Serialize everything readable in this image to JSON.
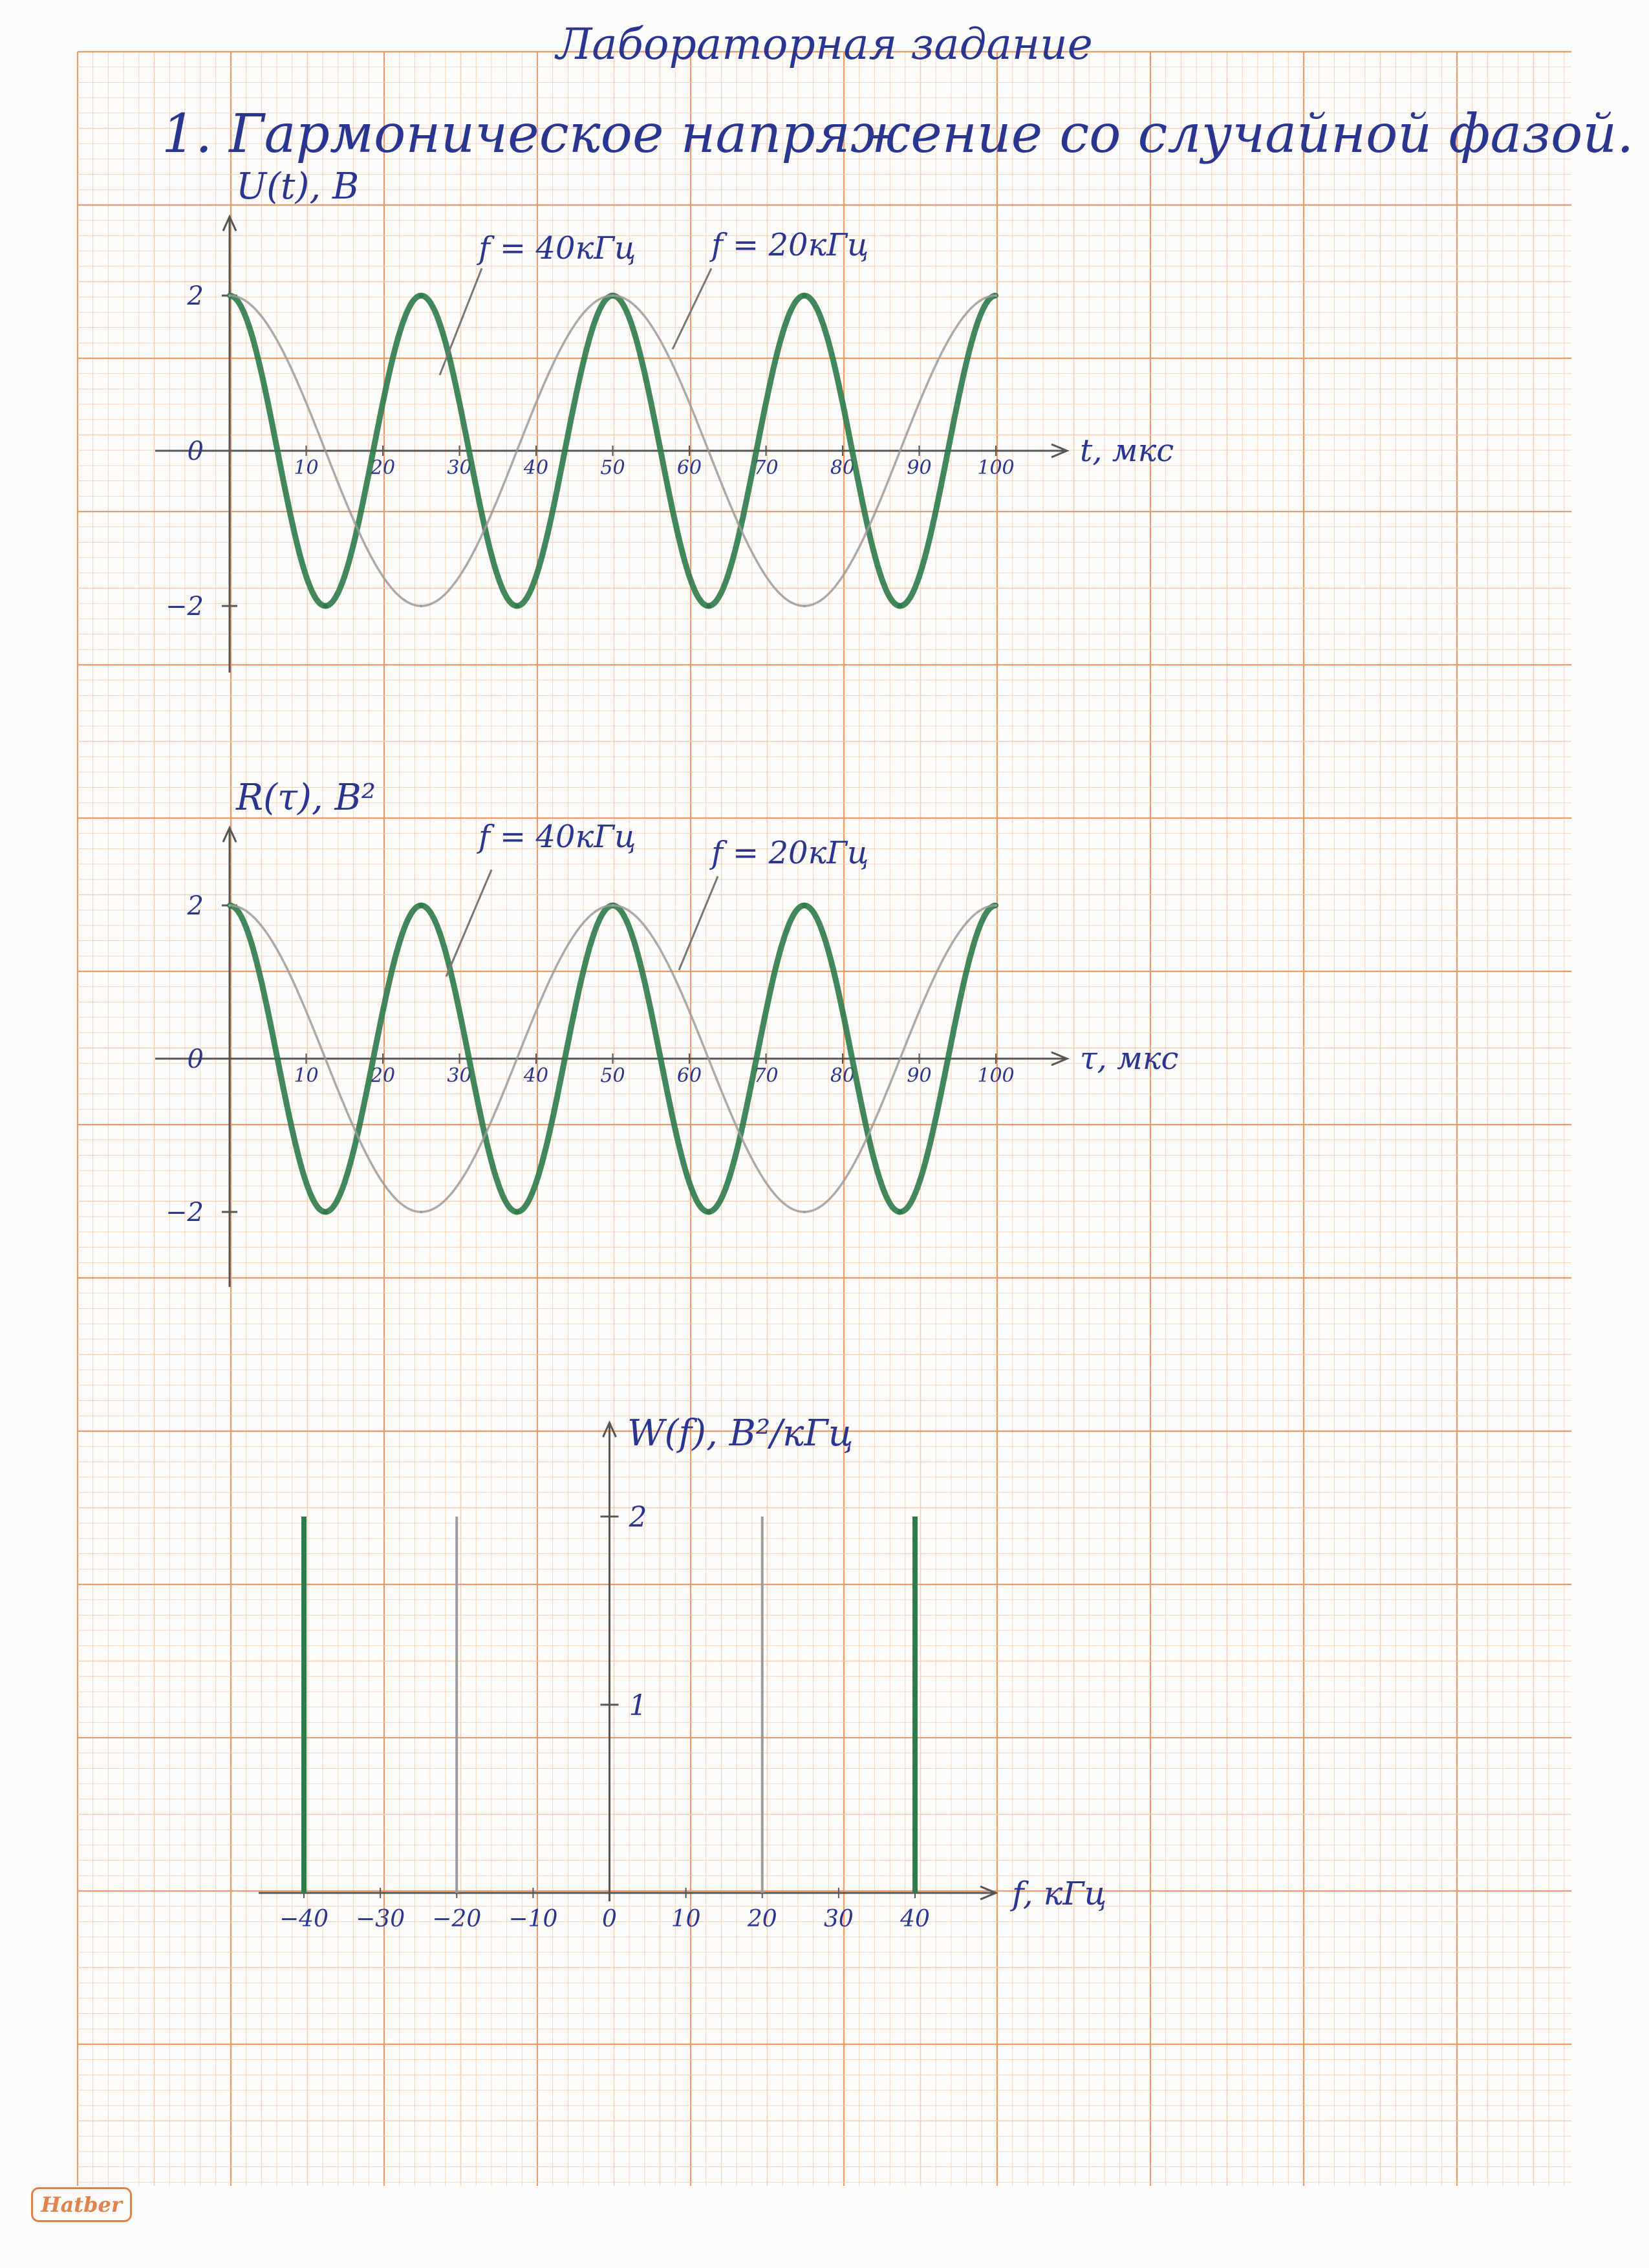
{
  "page": {
    "title": "Лабораторная задание",
    "section": "1. Гармоническое напряжение со случайной фазой.",
    "logo_text": "Hatber"
  },
  "colors": {
    "grid_minor": "#f6cdb2",
    "grid_major": "#ec9a68",
    "ink": "#2a3590",
    "green": "#2d7a4a",
    "pencil": "#9a9a9a"
  },
  "chart_data": [
    {
      "type": "line",
      "name": "u-of-t",
      "ylabel": "U(t), B",
      "xlabel": "t, мкс",
      "xlim": [
        0,
        100
      ],
      "ylim": [
        -2,
        2
      ],
      "x_ticks": [
        "10",
        "20",
        "30",
        "40",
        "50",
        "60",
        "70",
        "80",
        "90",
        "100"
      ],
      "y_ticks": [
        "2",
        "0",
        "-2"
      ],
      "annotations": [
        "f = 40кГц",
        "f = 20кГц"
      ],
      "series": [
        {
          "name": "f = 40кГц",
          "color": "#2d7a4a",
          "formula": "2cos(2π·0.04·t)",
          "x": [
            0,
            12.5,
            25,
            37.5,
            50,
            62.5,
            75,
            87.5,
            100
          ],
          "y": [
            2,
            -2,
            2,
            -2,
            2,
            -2,
            2,
            -2,
            2
          ]
        },
        {
          "name": "f = 20кГц",
          "color": "#9a9a9a",
          "formula": "2cos(2π·0.02·t)",
          "x": [
            0,
            25,
            50,
            75,
            100
          ],
          "y": [
            2,
            -2,
            2,
            -2,
            2
          ]
        }
      ]
    },
    {
      "type": "line",
      "name": "r-of-tau",
      "ylabel": "R(τ), B²",
      "xlabel": "τ, мкс",
      "xlim": [
        0,
        100
      ],
      "ylim": [
        -2,
        2
      ],
      "x_ticks": [
        "10",
        "20",
        "30",
        "40",
        "50",
        "60",
        "70",
        "80",
        "90",
        "100"
      ],
      "y_ticks": [
        "2",
        "0",
        "-2"
      ],
      "annotations": [
        "f = 40кГц",
        "f = 20кГц"
      ],
      "series": [
        {
          "name": "f = 40кГц",
          "color": "#2d7a4a",
          "formula": "2cos(2π·0.04·τ)",
          "x": [
            0,
            12.5,
            25,
            37.5,
            50,
            62.5,
            75,
            87.5,
            100
          ],
          "y": [
            2,
            -2,
            2,
            -2,
            2,
            -2,
            2,
            -2,
            2
          ]
        },
        {
          "name": "f = 20кГц",
          "color": "#9a9a9a",
          "formula": "2cos(2π·0.02·τ)",
          "x": [
            0,
            25,
            50,
            75,
            100
          ],
          "y": [
            2,
            -2,
            2,
            -2,
            2
          ]
        }
      ]
    },
    {
      "type": "bar",
      "name": "w-of-f",
      "ylabel": "W(f), B²/кГц",
      "xlabel": "f, кГц",
      "xlim": [
        -40,
        40
      ],
      "ylim": [
        0,
        2
      ],
      "x_ticks": [
        "-40",
        "-30",
        "-20",
        "-10",
        "0",
        "10",
        "20",
        "30",
        "40"
      ],
      "y_ticks": [
        "2",
        "1"
      ],
      "bars": [
        {
          "f": -40,
          "value": 2,
          "color": "#2d7a4a"
        },
        {
          "f": -20,
          "value": 2,
          "color": "#9a9a9a"
        },
        {
          "f": 20,
          "value": 2,
          "color": "#9a9a9a"
        },
        {
          "f": 40,
          "value": 2,
          "color": "#2d7a4a"
        }
      ]
    }
  ]
}
